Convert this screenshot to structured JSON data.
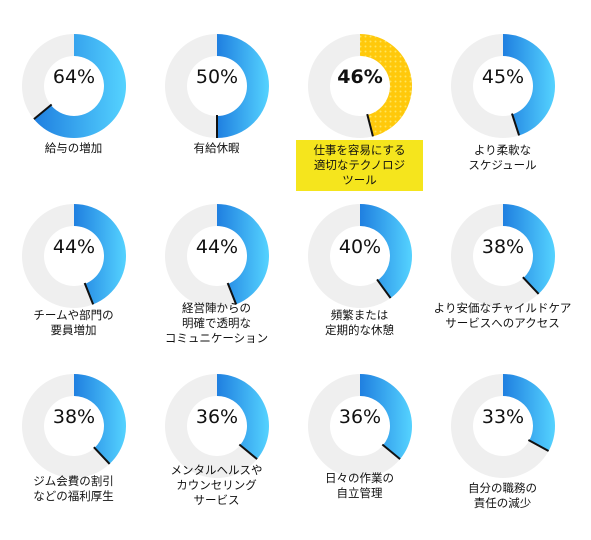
{
  "colors": {
    "track": "#efefef",
    "gradient_start": "#1f7fe0",
    "gradient_end": "#55d3ff",
    "highlight_fill": "#ffc90b",
    "highlight_dots": "#ffe55c",
    "highlight_label_bg": "#f5e51d",
    "end_tick": "#111111"
  },
  "chart_data": {
    "type": "pie",
    "title": "",
    "items": [
      {
        "value": 64,
        "label": "64%",
        "lines": [
          "給与の増加"
        ]
      },
      {
        "value": 50,
        "label": "50%",
        "lines": [
          "有給休暇"
        ]
      },
      {
        "value": 46,
        "label": "46%",
        "lines": [
          "仕事を容易にする",
          "適切なテクノロジ",
          "ツール"
        ],
        "highlight": true
      },
      {
        "value": 45,
        "label": "45%",
        "lines": [
          "より柔軟な",
          "スケジュール"
        ]
      },
      {
        "value": 44,
        "label": "44%",
        "lines": [
          "チームや部門の",
          "要員増加"
        ]
      },
      {
        "value": 44,
        "label": "44%",
        "lines": [
          "経営陣からの",
          "明確で透明な",
          "コミュニケーション"
        ]
      },
      {
        "value": 40,
        "label": "40%",
        "lines": [
          "頻繁または",
          "定期的な休憩"
        ]
      },
      {
        "value": 38,
        "label": "38%",
        "lines": [
          "より安価なチャイルドケア",
          "サービスへのアクセス"
        ]
      },
      {
        "value": 38,
        "label": "38%",
        "lines": [
          "ジム会費の割引",
          "などの福利厚生"
        ]
      },
      {
        "value": 36,
        "label": "36%",
        "lines": [
          "メンタルヘルスや",
          "カウンセリング",
          "サービス"
        ]
      },
      {
        "value": 36,
        "label": "36%",
        "lines": [
          "日々の作業の",
          "自立管理"
        ]
      },
      {
        "value": 33,
        "label": "33%",
        "lines": [
          "自分の職務の",
          "責任の減少"
        ]
      }
    ]
  }
}
